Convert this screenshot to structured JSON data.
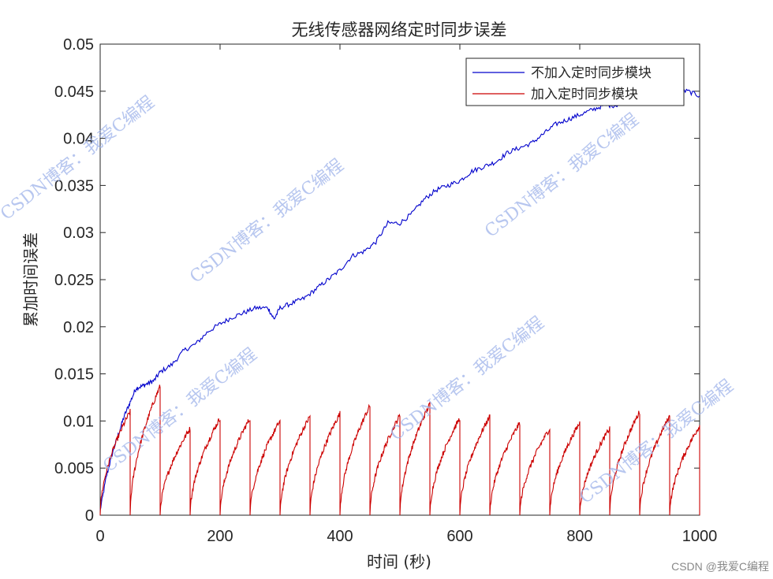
{
  "chart_data": {
    "type": "line",
    "title": "无线传感器网络定时同步误差",
    "xlabel": "时间 (秒)",
    "ylabel": "累加时间误差",
    "xlim": [
      0,
      1000
    ],
    "ylim": [
      0,
      0.05
    ],
    "x_ticks": [
      "0",
      "200",
      "400",
      "600",
      "800",
      "1000"
    ],
    "y_ticks": [
      "0",
      "0.005",
      "0.01",
      "0.015",
      "0.02",
      "0.025",
      "0.03",
      "0.035",
      "0.04",
      "0.045",
      "0.05"
    ],
    "legend_position": "top-right",
    "grid": false,
    "series": [
      {
        "name": "不加入定时同步模块",
        "color": "#0000cc",
        "x": [
          0,
          10,
          20,
          30,
          40,
          50,
          60,
          70,
          80,
          90,
          100,
          120,
          140,
          160,
          180,
          200,
          220,
          240,
          260,
          280,
          290,
          300,
          320,
          340,
          360,
          380,
          400,
          420,
          440,
          460,
          480,
          500,
          520,
          540,
          560,
          580,
          600,
          620,
          640,
          660,
          680,
          700,
          720,
          740,
          760,
          780,
          800,
          820,
          840,
          860,
          880,
          900,
          920,
          940,
          960,
          980,
          1000
        ],
        "y": [
          0.0005,
          0.004,
          0.0065,
          0.0085,
          0.0105,
          0.012,
          0.0135,
          0.0137,
          0.014,
          0.0143,
          0.0152,
          0.016,
          0.0175,
          0.0182,
          0.0195,
          0.0203,
          0.021,
          0.0215,
          0.022,
          0.022,
          0.0208,
          0.022,
          0.0225,
          0.023,
          0.024,
          0.025,
          0.026,
          0.0275,
          0.028,
          0.029,
          0.031,
          0.031,
          0.032,
          0.0335,
          0.0345,
          0.035,
          0.0355,
          0.0365,
          0.037,
          0.0375,
          0.0385,
          0.039,
          0.0395,
          0.0405,
          0.0415,
          0.042,
          0.0425,
          0.043,
          0.0435,
          0.0435,
          0.044,
          0.0445,
          0.0445,
          0.045,
          0.045,
          0.045,
          0.0445
        ]
      },
      {
        "name": "加入定时同步模块",
        "color": "#cc0000",
        "sync_period": 50,
        "peaks": [
          0.011,
          0.0137,
          0.0092,
          0.0103,
          0.0103,
          0.01,
          0.0105,
          0.0108,
          0.0116,
          0.0106,
          0.0118,
          0.0103,
          0.0105,
          0.0098,
          0.0092,
          0.0098,
          0.0092,
          0.011,
          0.0105,
          0.0095
        ],
        "x": [
          0,
          50,
          50,
          100,
          100,
          150,
          150,
          200,
          200,
          250,
          250,
          300,
          300,
          350,
          350,
          400,
          400,
          450,
          450,
          500,
          500,
          550,
          550,
          600,
          600,
          650,
          650,
          700,
          700,
          750,
          750,
          800,
          800,
          850,
          850,
          900,
          900,
          950,
          950,
          1000
        ],
        "y": [
          0,
          0.011,
          0,
          0.0137,
          0,
          0.0092,
          0,
          0.0103,
          0,
          0.0103,
          0,
          0.01,
          0,
          0.0105,
          0,
          0.0108,
          0,
          0.0116,
          0,
          0.0106,
          0,
          0.0118,
          0,
          0.0103,
          0,
          0.0105,
          0,
          0.0098,
          0,
          0.0092,
          0,
          0.0098,
          0,
          0.0092,
          0,
          0.011,
          0,
          0.0105,
          0,
          0.0095
        ]
      }
    ]
  },
  "watermark": {
    "text": "CSDN博客：我爱C编程",
    "footer": "CSDN @我爱C编程"
  }
}
